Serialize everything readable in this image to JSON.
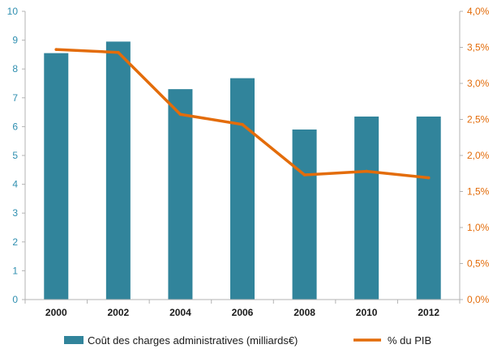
{
  "chart_data": {
    "type": "bar",
    "categories": [
      "2000",
      "2002",
      "2004",
      "2006",
      "2008",
      "2010",
      "2012"
    ],
    "series": [
      {
        "name": "Coût des charges administratives (milliards€)",
        "type": "bar",
        "axis": "left",
        "color": "#31849b",
        "values": [
          8.55,
          8.95,
          7.3,
          7.68,
          5.9,
          6.35,
          6.35
        ]
      },
      {
        "name": "% du PIB",
        "type": "line",
        "axis": "right",
        "color": "#e36c0a",
        "values": [
          3.47,
          3.43,
          2.57,
          2.43,
          1.73,
          1.78,
          1.69
        ]
      }
    ],
    "y_left": {
      "ylim": [
        0,
        10
      ],
      "ticks": [
        "0",
        "1",
        "2",
        "3",
        "4",
        "5",
        "6",
        "7",
        "8",
        "9",
        "10"
      ],
      "color": "#2f8fb0"
    },
    "y_right": {
      "ylim": [
        0,
        4.0
      ],
      "ticks": [
        "0,0%",
        "0,5%",
        "1,0%",
        "1,5%",
        "2,0%",
        "2,5%",
        "3,0%",
        "3,5%",
        "4,0%"
      ],
      "color": "#e36c0a"
    },
    "grid": false,
    "legend_position": "bottom"
  }
}
